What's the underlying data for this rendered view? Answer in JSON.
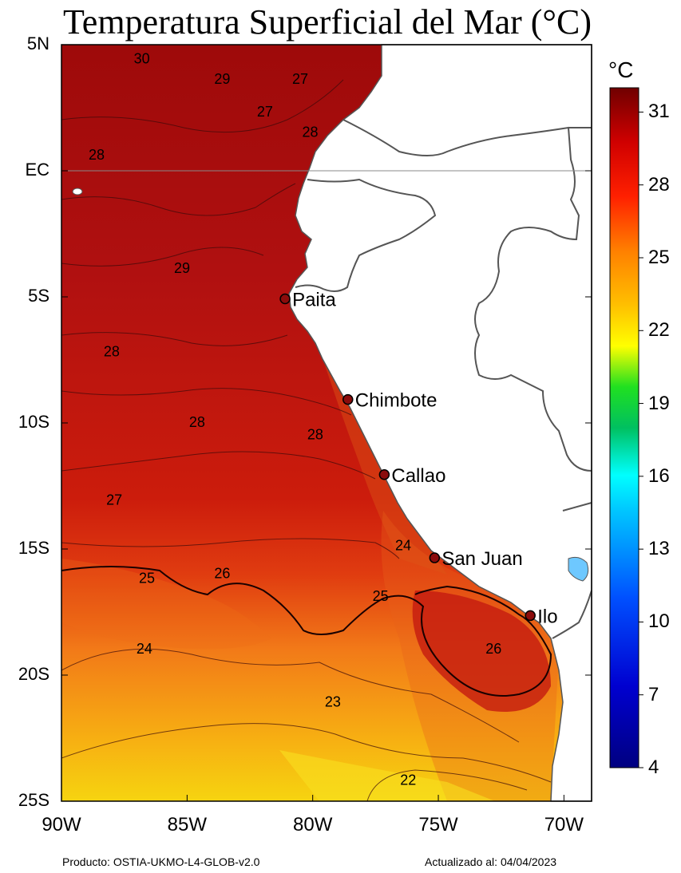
{
  "title": "Temperatura Superficial del Mar (°C)",
  "map": {
    "lat_labels": [
      {
        "text": "5N",
        "lat": 5
      },
      {
        "text": "EC",
        "lat": 0
      },
      {
        "text": "5S",
        "lat": -5
      },
      {
        "text": "10S",
        "lat": -10
      },
      {
        "text": "15S",
        "lat": -15
      },
      {
        "text": "20S",
        "lat": -20
      },
      {
        "text": "25S",
        "lat": -25
      }
    ],
    "lon_labels": [
      {
        "text": "90W",
        "lon": -90
      },
      {
        "text": "85W",
        "lon": -85
      },
      {
        "text": "80W",
        "lon": -80
      },
      {
        "text": "75W",
        "lon": -75
      },
      {
        "text": "70W",
        "lon": -70
      }
    ],
    "cities": [
      {
        "name": "Paita",
        "lat": -5.08,
        "lon": -81.1
      },
      {
        "name": "Chimbote",
        "lat": -9.07,
        "lon": -78.6
      },
      {
        "name": "Callao",
        "lat": -12.05,
        "lon": -77.15
      },
      {
        "name": "San Juan",
        "lat": -15.35,
        "lon": -75.15
      },
      {
        "name": "Ilo",
        "lat": -17.64,
        "lon": -71.34
      }
    ],
    "contour_labels": [
      {
        "text": "30",
        "lat": 4.4,
        "lon": -86.8
      },
      {
        "text": "29",
        "lat": 3.6,
        "lon": -83.6
      },
      {
        "text": "27",
        "lat": 3.6,
        "lon": -80.5
      },
      {
        "text": "27",
        "lat": 2.3,
        "lon": -81.9
      },
      {
        "text": "28",
        "lat": 1.5,
        "lon": -80.1
      },
      {
        "text": "28",
        "lat": 0.6,
        "lon": -88.6
      },
      {
        "text": "29",
        "lat": -3.9,
        "lon": -85.2
      },
      {
        "text": "28",
        "lat": -7.2,
        "lon": -88.0
      },
      {
        "text": "28",
        "lat": -10.0,
        "lon": -84.6
      },
      {
        "text": "28",
        "lat": -10.5,
        "lon": -79.9
      },
      {
        "text": "27",
        "lat": -13.1,
        "lon": -87.9
      },
      {
        "text": "24",
        "lat": -14.9,
        "lon": -76.4
      },
      {
        "text": "25",
        "lat": -16.2,
        "lon": -86.6
      },
      {
        "text": "26",
        "lat": -16.0,
        "lon": -83.6
      },
      {
        "text": "25",
        "lat": -16.9,
        "lon": -77.3
      },
      {
        "text": "26",
        "lat": -19.0,
        "lon": -72.8
      },
      {
        "text": "24",
        "lat": -19.0,
        "lon": -86.7
      },
      {
        "text": "23",
        "lat": -21.1,
        "lon": -79.2
      },
      {
        "text": "22",
        "lat": -24.2,
        "lon": -76.2
      }
    ]
  },
  "colorbar": {
    "unit": "°C",
    "min": 4,
    "max": 32,
    "ticks": [
      "31",
      "28",
      "25",
      "22",
      "19",
      "16",
      "13",
      "10",
      "7",
      "4"
    ],
    "colors": [
      "#000080",
      "#0000d0",
      "#0050ff",
      "#00c8ff",
      "#00ffff",
      "#00c060",
      "#20e020",
      "#ffff00",
      "#ffc000",
      "#ff8000",
      "#ff2000",
      "#d00000",
      "#700000"
    ]
  },
  "footer": {
    "product": "Producto: OSTIA-UKMO-L4-GLOB-v2.0",
    "updated": "Actualizado al: 04/04/2023"
  }
}
